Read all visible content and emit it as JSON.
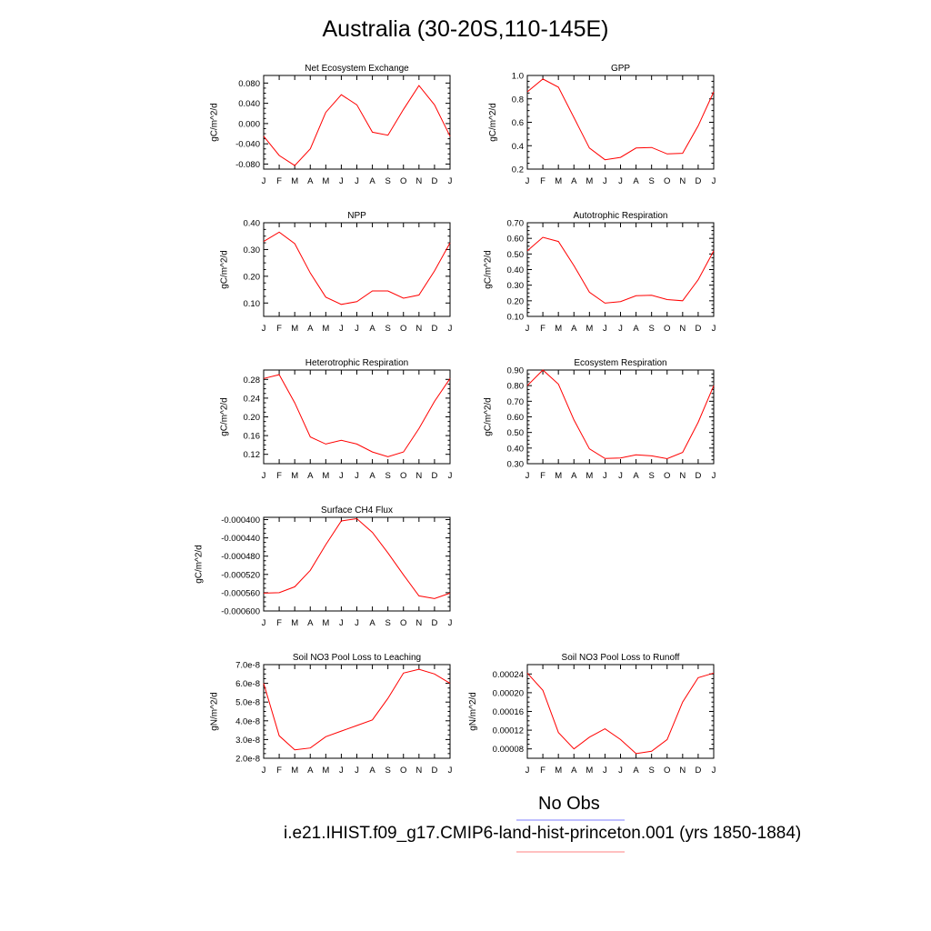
{
  "title": "Australia (30-20S,110-145E)",
  "legend": {
    "entries": [
      {
        "label": "No Obs",
        "color": "#7f7fff"
      },
      {
        "label": "i.e21.IHIST.f09_g17.CMIP6-land-hist-princeton.001 (yrs 1850-1884)",
        "color": "#ff8080"
      }
    ]
  },
  "colors": {
    "series": "#ff0000",
    "axis": "#000000"
  },
  "chart_data": [
    {
      "type": "line",
      "title": "Net Ecosystem Exchange",
      "ylabel": "gC/m^2/d",
      "categories": [
        "J",
        "F",
        "M",
        "A",
        "M",
        "J",
        "J",
        "A",
        "S",
        "O",
        "N",
        "D",
        "J"
      ],
      "ylim": [
        -0.09,
        0.095
      ],
      "yticks": [
        -0.08,
        -0.04,
        0.0,
        0.04,
        0.08
      ],
      "yticklabels": [
        "-0.080",
        "-0.040",
        "0.000",
        "0.040",
        "0.080"
      ],
      "series": [
        {
          "values": [
            -0.025,
            -0.063,
            -0.083,
            -0.05,
            0.022,
            0.057,
            0.037,
            -0.017,
            -0.023,
            0.028,
            0.075,
            0.037,
            -0.025
          ]
        }
      ]
    },
    {
      "type": "line",
      "title": "GPP",
      "ylabel": "gC/m^2/d",
      "categories": [
        "J",
        "F",
        "M",
        "A",
        "M",
        "J",
        "J",
        "A",
        "S",
        "O",
        "N",
        "D",
        "J"
      ],
      "ylim": [
        0.2,
        1.0
      ],
      "yticks": [
        0.2,
        0.4,
        0.6,
        0.8,
        1.0
      ],
      "yticklabels": [
        "0.2",
        "0.4",
        "0.6",
        "0.8",
        "1.0"
      ],
      "series": [
        {
          "values": [
            0.86,
            0.97,
            0.9,
            0.64,
            0.38,
            0.28,
            0.3,
            0.38,
            0.385,
            0.33,
            0.335,
            0.57,
            0.86
          ]
        }
      ]
    },
    {
      "type": "line",
      "title": "NPP",
      "ylabel": "gC/m^2/d",
      "categories": [
        "J",
        "F",
        "M",
        "A",
        "M",
        "J",
        "J",
        "A",
        "S",
        "O",
        "N",
        "D",
        "J"
      ],
      "ylim": [
        0.05,
        0.4
      ],
      "yticks": [
        0.1,
        0.2,
        0.3,
        0.4
      ],
      "yticklabels": [
        "0.10",
        "0.20",
        "0.30",
        "0.40"
      ],
      "series": [
        {
          "values": [
            0.33,
            0.365,
            0.322,
            0.212,
            0.122,
            0.095,
            0.105,
            0.145,
            0.145,
            0.118,
            0.13,
            0.22,
            0.325
          ]
        }
      ]
    },
    {
      "type": "line",
      "title": "Autotrophic Respiration",
      "ylabel": "gC/m^2/d",
      "categories": [
        "J",
        "F",
        "M",
        "A",
        "M",
        "J",
        "J",
        "A",
        "S",
        "O",
        "N",
        "D",
        "J"
      ],
      "ylim": [
        0.1,
        0.7
      ],
      "yticks": [
        0.1,
        0.2,
        0.3,
        0.4,
        0.5,
        0.6,
        0.7
      ],
      "yticklabels": [
        "0.10",
        "0.20",
        "0.30",
        "0.40",
        "0.50",
        "0.60",
        "0.70"
      ],
      "series": [
        {
          "values": [
            0.52,
            0.607,
            0.58,
            0.425,
            0.255,
            0.185,
            0.195,
            0.232,
            0.235,
            0.208,
            0.2,
            0.335,
            0.52
          ]
        }
      ]
    },
    {
      "type": "line",
      "title": "Heterotrophic Respiration",
      "ylabel": "gC/m^2/d",
      "categories": [
        "J",
        "F",
        "M",
        "A",
        "M",
        "J",
        "J",
        "A",
        "S",
        "O",
        "N",
        "D",
        "J"
      ],
      "ylim": [
        0.1,
        0.3
      ],
      "yticks": [
        0.12,
        0.16,
        0.2,
        0.24,
        0.28
      ],
      "yticklabels": [
        "0.12",
        "0.16",
        "0.20",
        "0.24",
        "0.28"
      ],
      "series": [
        {
          "values": [
            0.282,
            0.29,
            0.23,
            0.157,
            0.142,
            0.15,
            0.142,
            0.125,
            0.115,
            0.125,
            0.175,
            0.233,
            0.282
          ]
        }
      ]
    },
    {
      "type": "line",
      "title": "Ecosystem Respiration",
      "ylabel": "gC/m^2/d",
      "categories": [
        "J",
        "F",
        "M",
        "A",
        "M",
        "J",
        "J",
        "A",
        "S",
        "O",
        "N",
        "D",
        "J"
      ],
      "ylim": [
        0.3,
        0.9
      ],
      "yticks": [
        0.3,
        0.4,
        0.5,
        0.6,
        0.7,
        0.8,
        0.9
      ],
      "yticklabels": [
        "0.30",
        "0.40",
        "0.50",
        "0.60",
        "0.70",
        "0.80",
        "0.90"
      ],
      "series": [
        {
          "values": [
            0.8,
            0.9,
            0.81,
            0.58,
            0.395,
            0.333,
            0.336,
            0.357,
            0.35,
            0.332,
            0.372,
            0.565,
            0.8
          ]
        }
      ]
    },
    {
      "type": "line",
      "title": "Surface CH4 Flux",
      "ylabel": "gC/m^2/d",
      "categories": [
        "J",
        "F",
        "M",
        "A",
        "M",
        "J",
        "J",
        "A",
        "S",
        "O",
        "N",
        "D",
        "J"
      ],
      "ylim": [
        -0.0006,
        -0.000395
      ],
      "yticks": [
        -0.0006,
        -0.00056,
        -0.00052,
        -0.00048,
        -0.00044,
        -0.0004
      ],
      "yticklabels": [
        "-0.000600",
        "-0.000560",
        "-0.000520",
        "-0.000480",
        "-0.000440",
        "-0.000400"
      ],
      "series": [
        {
          "values": [
            -0.000561,
            -0.00056,
            -0.000547,
            -0.000511,
            -0.000455,
            -0.000403,
            -0.000398,
            -0.000428,
            -0.000473,
            -0.000521,
            -0.000567,
            -0.000573,
            -0.000561
          ]
        }
      ]
    },
    {
      "type": "line",
      "title": "Soil NO3 Pool Loss to Leaching",
      "ylabel": "gN/m^2/d",
      "categories": [
        "J",
        "F",
        "M",
        "A",
        "M",
        "J",
        "J",
        "A",
        "S",
        "O",
        "N",
        "D",
        "J"
      ],
      "ylim": [
        2e-08,
        7e-08
      ],
      "yticks": [
        2e-08,
        3e-08,
        4e-08,
        5e-08,
        6e-08,
        7e-08
      ],
      "yticklabels": [
        "2.0e-8",
        "3.0e-8",
        "4.0e-8",
        "5.0e-8",
        "6.0e-8",
        "7.0e-8"
      ],
      "series": [
        {
          "values": [
            6e-08,
            3.2e-08,
            2.45e-08,
            2.55e-08,
            3.15e-08,
            3.45e-08,
            3.75e-08,
            4.05e-08,
            5.2e-08,
            6.55e-08,
            6.75e-08,
            6.5e-08,
            6e-08
          ]
        }
      ]
    },
    {
      "type": "line",
      "title": "Soil NO3 Pool Loss to Runoff",
      "ylabel": "gN/m^2/d",
      "categories": [
        "J",
        "F",
        "M",
        "A",
        "M",
        "J",
        "J",
        "A",
        "S",
        "O",
        "N",
        "D",
        "J"
      ],
      "ylim": [
        6e-05,
        0.00026
      ],
      "yticks": [
        8e-05,
        0.00012,
        0.00016,
        0.0002,
        0.00024
      ],
      "yticklabels": [
        "0.00008",
        "0.00012",
        "0.00016",
        "0.00020",
        "0.00024"
      ],
      "series": [
        {
          "values": [
            0.000242,
            0.000205,
            0.000115,
            8e-05,
            0.000105,
            0.000123,
            0.0001,
            7e-05,
            7.5e-05,
            0.0001,
            0.00018,
            0.000232,
            0.000242
          ]
        }
      ]
    }
  ]
}
